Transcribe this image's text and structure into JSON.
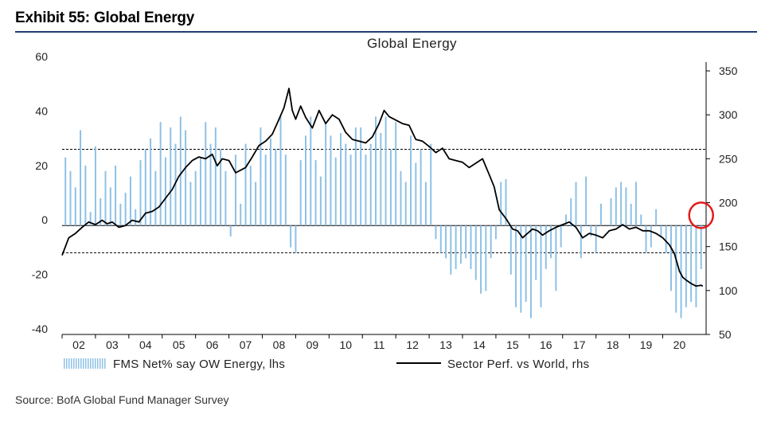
{
  "exhibit": {
    "title": "Exhibit 55: Global Energy"
  },
  "source": "Source: BofA Global Fund Manager Survey",
  "colors": {
    "bars": "#8ec1e6",
    "line": "#000000",
    "highlight_circle": "#e41a1c",
    "rule": "#1f3f73"
  },
  "chart_data": {
    "type": "bar+line",
    "title": "Global Energy",
    "x_tick_labels": [
      "02",
      "03",
      "04",
      "05",
      "06",
      "07",
      "08",
      "09",
      "10",
      "11",
      "12",
      "13",
      "14",
      "15",
      "16",
      "17",
      "18",
      "19",
      "20"
    ],
    "x_range": [
      2001.5,
      2020.8
    ],
    "y_left": {
      "range": [
        -40,
        60
      ],
      "ticks": [
        "60",
        "40",
        "20",
        "0",
        "-20",
        "-40"
      ]
    },
    "y_right": {
      "range": [
        50,
        360
      ],
      "ticks": [
        "350",
        "300",
        "250",
        "200",
        "150",
        "100",
        "50"
      ]
    },
    "reference_lines_lhs": [
      28,
      0,
      -10
    ],
    "highlight": {
      "shape": "circle",
      "x": 2020.65,
      "y_left": 2
    },
    "series": [
      {
        "name": "FMS Net% say OW Energy, lhs",
        "type": "bar",
        "axis": "left",
        "x": [
          2001.6,
          2001.75,
          2001.9,
          2002.05,
          2002.2,
          2002.35,
          2002.5,
          2002.65,
          2002.8,
          2002.95,
          2003.1,
          2003.25,
          2003.4,
          2003.55,
          2003.7,
          2003.85,
          2004.0,
          2004.15,
          2004.3,
          2004.45,
          2004.6,
          2004.75,
          2004.9,
          2005.05,
          2005.2,
          2005.35,
          2005.5,
          2005.65,
          2005.8,
          2005.95,
          2006.1,
          2006.25,
          2006.4,
          2006.55,
          2006.7,
          2006.85,
          2007.0,
          2007.15,
          2007.3,
          2007.45,
          2007.6,
          2007.75,
          2007.9,
          2008.05,
          2008.2,
          2008.35,
          2008.5,
          2008.65,
          2008.8,
          2008.95,
          2009.1,
          2009.25,
          2009.4,
          2009.55,
          2009.7,
          2009.85,
          2010.0,
          2010.15,
          2010.3,
          2010.45,
          2010.6,
          2010.75,
          2010.9,
          2011.05,
          2011.2,
          2011.35,
          2011.5,
          2011.65,
          2011.8,
          2011.95,
          2012.1,
          2012.25,
          2012.4,
          2012.55,
          2012.7,
          2012.85,
          2013.0,
          2013.15,
          2013.3,
          2013.45,
          2013.6,
          2013.75,
          2013.9,
          2014.05,
          2014.2,
          2014.35,
          2014.5,
          2014.65,
          2014.8,
          2014.95,
          2015.1,
          2015.25,
          2015.4,
          2015.55,
          2015.7,
          2015.85,
          2016.0,
          2016.15,
          2016.3,
          2016.45,
          2016.6,
          2016.75,
          2016.9,
          2017.05,
          2017.2,
          2017.35,
          2017.5,
          2017.65,
          2017.8,
          2017.95,
          2018.1,
          2018.25,
          2018.4,
          2018.55,
          2018.7,
          2018.85,
          2019.0,
          2019.15,
          2019.3,
          2019.45,
          2019.6,
          2019.75,
          2019.9,
          2020.05,
          2020.2,
          2020.35,
          2020.5,
          2020.65
        ],
        "values": [
          25,
          20,
          14,
          35,
          22,
          5,
          29,
          10,
          20,
          14,
          22,
          8,
          12,
          18,
          6,
          24,
          28,
          32,
          20,
          38,
          25,
          36,
          30,
          40,
          35,
          16,
          20,
          25,
          38,
          30,
          36,
          28,
          20,
          -4,
          26,
          8,
          30,
          22,
          16,
          36,
          26,
          32,
          28,
          40,
          26,
          -8,
          -10,
          24,
          33,
          40,
          24,
          18,
          38,
          33,
          25,
          34,
          30,
          26,
          36,
          36,
          26,
          30,
          40,
          34,
          40,
          28,
          38,
          20,
          16,
          33,
          23,
          28,
          16,
          30,
          -5,
          -10,
          -12,
          -18,
          -16,
          -14,
          -12,
          -16,
          -20,
          -25,
          -24,
          -12,
          -5,
          16,
          17,
          -18,
          -30,
          -32,
          -28,
          -34,
          -20,
          -30,
          -16,
          -12,
          -24,
          -8,
          4,
          10,
          16,
          -12,
          18,
          -4,
          -10,
          8,
          0,
          10,
          14,
          16,
          14,
          8,
          16,
          4,
          -10,
          -8,
          6,
          -4,
          -10,
          -24,
          -32,
          -34,
          -30,
          -28,
          -30,
          -16
        ],
        "values_omitted_for_brevity_note": ""
      },
      {
        "name": "Sector Perf. vs World, rhs",
        "type": "line",
        "axis": "right",
        "x": [
          2001.5,
          2001.7,
          2001.9,
          2002.1,
          2002.3,
          2002.5,
          2002.7,
          2002.85,
          2003.0,
          2003.2,
          2003.4,
          2003.6,
          2003.8,
          2004.0,
          2004.2,
          2004.4,
          2004.6,
          2004.8,
          2005.0,
          2005.2,
          2005.4,
          2005.6,
          2005.8,
          2006.0,
          2006.15,
          2006.3,
          2006.5,
          2006.7,
          2006.85,
          2007.0,
          2007.2,
          2007.4,
          2007.6,
          2007.8,
          2008.0,
          2008.15,
          2008.3,
          2008.4,
          2008.5,
          2008.65,
          2008.8,
          2009.0,
          2009.2,
          2009.4,
          2009.6,
          2009.8,
          2010.0,
          2010.2,
          2010.4,
          2010.6,
          2010.8,
          2011.0,
          2011.15,
          2011.3,
          2011.5,
          2011.7,
          2011.9,
          2012.1,
          2012.3,
          2012.5,
          2012.7,
          2012.9,
          2013.1,
          2013.3,
          2013.5,
          2013.7,
          2013.9,
          2014.1,
          2014.3,
          2014.45,
          2014.6,
          2014.8,
          2015.0,
          2015.15,
          2015.3,
          2015.45,
          2015.6,
          2015.75,
          2015.9,
          2016.1,
          2016.3,
          2016.5,
          2016.7,
          2016.9,
          2017.1,
          2017.3,
          2017.5,
          2017.7,
          2017.9,
          2018.1,
          2018.3,
          2018.5,
          2018.7,
          2018.9,
          2019.1,
          2019.3,
          2019.5,
          2019.7,
          2019.85,
          2020.0,
          2020.1,
          2020.2,
          2020.35,
          2020.5,
          2020.65,
          2020.7
        ],
        "values": [
          140,
          160,
          165,
          172,
          178,
          175,
          180,
          176,
          178,
          172,
          174,
          180,
          178,
          188,
          190,
          195,
          205,
          215,
          230,
          240,
          248,
          252,
          250,
          255,
          242,
          250,
          248,
          234,
          237,
          240,
          252,
          265,
          270,
          278,
          295,
          308,
          330,
          305,
          295,
          310,
          297,
          285,
          305,
          290,
          300,
          295,
          280,
          272,
          270,
          268,
          275,
          290,
          305,
          298,
          294,
          290,
          288,
          272,
          270,
          264,
          257,
          262,
          250,
          248,
          246,
          240,
          245,
          250,
          232,
          218,
          192,
          182,
          170,
          168,
          160,
          165,
          170,
          168,
          163,
          168,
          172,
          175,
          178,
          172,
          160,
          165,
          163,
          160,
          168,
          170,
          175,
          170,
          172,
          168,
          168,
          165,
          160,
          152,
          142,
          122,
          115,
          112,
          108,
          105,
          106,
          105
        ]
      }
    ]
  },
  "legend": {
    "bars_label": "FMS Net% say OW Energy, lhs",
    "line_label": "Sector Perf. vs World, rhs"
  }
}
